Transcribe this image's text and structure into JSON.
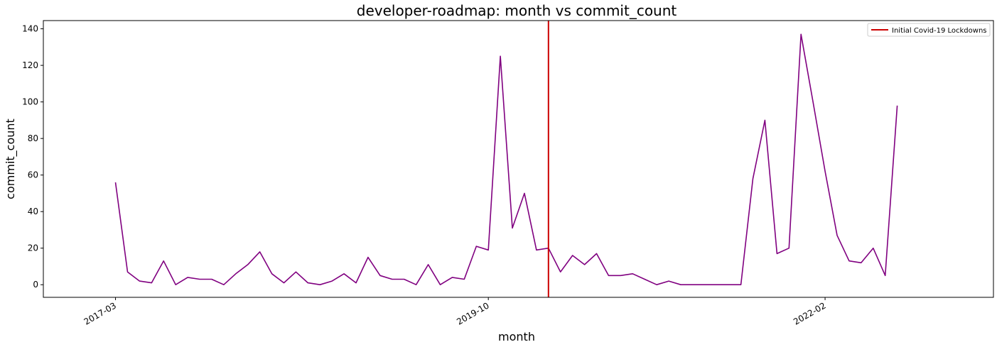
{
  "chart_data": {
    "type": "line",
    "title": "developer-roadmap: month vs commit_count",
    "xlabel": "month",
    "ylabel": "commit_count",
    "x_tick_labels": [
      "2017-03",
      "2019-10",
      "2022-02"
    ],
    "y_ticks": [
      0,
      20,
      40,
      60,
      80,
      100,
      120,
      140
    ],
    "ylim": [
      -6.9,
      144.5
    ],
    "xlim": [
      "2016-09",
      "2023-04"
    ],
    "grid": false,
    "legend_position": "top-right",
    "colors": {
      "series": "#800080",
      "marker_line": "#cc0000"
    },
    "series": [
      {
        "x": [
          "2017-03",
          "2017-04",
          "2017-05",
          "2017-06",
          "2017-07",
          "2017-08",
          "2017-09",
          "2017-10",
          "2017-11",
          "2017-12",
          "2018-01",
          "2018-02",
          "2018-03",
          "2018-04",
          "2018-05",
          "2018-06",
          "2018-07",
          "2018-08",
          "2018-09",
          "2018-10",
          "2018-11",
          "2018-12",
          "2019-01",
          "2019-02",
          "2019-03",
          "2019-04",
          "2019-05",
          "2019-06",
          "2019-07",
          "2019-08",
          "2019-09",
          "2019-10",
          "2019-11",
          "2019-12",
          "2020-01",
          "2020-02",
          "2020-03",
          "2020-04",
          "2020-05",
          "2020-06",
          "2020-07",
          "2020-08",
          "2020-09",
          "2020-10",
          "2020-11",
          "2020-12",
          "2021-01",
          "2021-02",
          "2021-04",
          "2021-05",
          "2021-06",
          "2021-07",
          "2021-08",
          "2021-09",
          "2021-10",
          "2021-11",
          "2021-12",
          "2022-01",
          "2022-02",
          "2022-03",
          "2022-04",
          "2022-05",
          "2022-06",
          "2022-07",
          "2022-08"
        ],
        "y": [
          56,
          7,
          2,
          1,
          13,
          0,
          4,
          3,
          3,
          0,
          6,
          11,
          18,
          6,
          1,
          7,
          1,
          0,
          2,
          6,
          1,
          15,
          5,
          3,
          3,
          0,
          11,
          0,
          4,
          3,
          21,
          19,
          125,
          31,
          50,
          19,
          20,
          7,
          16,
          11,
          17,
          5,
          5,
          6,
          3,
          0,
          2,
          0,
          0,
          0,
          0,
          0,
          58,
          90,
          17,
          20,
          137,
          100,
          62,
          27,
          13,
          12,
          20,
          5,
          98
        ]
      }
    ],
    "vertical_marker": {
      "x": "2020-03",
      "label": "Initial Covid-19 Lockdowns"
    }
  }
}
